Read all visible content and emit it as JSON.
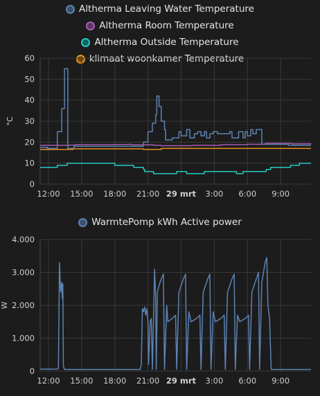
{
  "charts": [
    {
      "type": "line",
      "ylabel": "°C",
      "ylim": [
        0,
        60
      ],
      "yticks": [
        0,
        10,
        20,
        30,
        40,
        50,
        60
      ],
      "ytick_labels": [
        "0",
        "10",
        "20",
        "30",
        "40",
        "50",
        "60"
      ],
      "x_range": [
        11.25,
        35.75
      ],
      "xticks": [
        12,
        15,
        18,
        21,
        24,
        27,
        30,
        33
      ],
      "xtick_labels": [
        "12:00",
        "15:00",
        "18:00",
        "21:00",
        "29 mrt",
        "3:00",
        "6:00",
        "9:00"
      ],
      "legend": [
        {
          "name": "Altherma Leaving Water Temperature",
          "color": "#5d83b3",
          "fill": "#3b4e6b"
        },
        {
          "name": "Altherma Room Temperature",
          "color": "#a35fb0",
          "fill": "#5c3566"
        },
        {
          "name": "Altherma Outside Temperature",
          "color": "#27c9c0",
          "fill": "#13615c"
        },
        {
          "name": "klimaat woonkamer Temperature",
          "color": "#e8901c",
          "fill": "#7a4c10"
        }
      ],
      "series": [
        {
          "name": "Altherma Leaving Water Temperature",
          "color": "#5d83b3",
          "step": true,
          "points": [
            [
              11.25,
              17.5
            ],
            [
              11.9,
              17
            ],
            [
              12.6,
              17
            ],
            [
              12.8,
              25
            ],
            [
              13.1,
              25
            ],
            [
              13.2,
              36
            ],
            [
              13.4,
              36
            ],
            [
              13.45,
              55
            ],
            [
              13.7,
              55
            ],
            [
              13.75,
              17
            ],
            [
              14.2,
              17
            ],
            [
              14.3,
              18
            ],
            [
              19.5,
              18
            ],
            [
              20.3,
              18
            ],
            [
              20.6,
              20
            ],
            [
              21.0,
              25
            ],
            [
              21.3,
              25
            ],
            [
              21.4,
              29
            ],
            [
              21.6,
              29
            ],
            [
              21.7,
              33
            ],
            [
              21.8,
              42
            ],
            [
              22.0,
              37
            ],
            [
              22.2,
              30
            ],
            [
              22.5,
              26
            ],
            [
              22.6,
              21
            ],
            [
              23.0,
              21
            ],
            [
              23.2,
              22
            ],
            [
              23.6,
              22
            ],
            [
              23.8,
              25
            ],
            [
              24.0,
              23
            ],
            [
              24.4,
              23
            ],
            [
              24.5,
              26
            ],
            [
              24.8,
              22
            ],
            [
              25.2,
              24
            ],
            [
              25.5,
              25
            ],
            [
              25.8,
              23
            ],
            [
              26.1,
              25
            ],
            [
              26.3,
              22
            ],
            [
              26.6,
              24
            ],
            [
              26.9,
              25
            ],
            [
              27.1,
              25
            ],
            [
              27.3,
              24
            ],
            [
              28.3,
              24
            ],
            [
              28.4,
              25
            ],
            [
              28.6,
              22
            ],
            [
              29.0,
              22
            ],
            [
              29.2,
              25
            ],
            [
              29.6,
              22
            ],
            [
              29.8,
              25
            ],
            [
              30.0,
              23
            ],
            [
              30.3,
              26
            ],
            [
              30.5,
              24
            ],
            [
              30.7,
              24
            ],
            [
              30.8,
              26
            ],
            [
              31.2,
              26
            ],
            [
              31.3,
              19
            ],
            [
              33.6,
              19
            ],
            [
              33.7,
              18.5
            ],
            [
              35.75,
              18.5
            ]
          ]
        },
        {
          "name": "Altherma Room Temperature",
          "color": "#a35fb0",
          "step": true,
          "points": [
            [
              11.25,
              18.5
            ],
            [
              13.8,
              18.6
            ],
            [
              14.4,
              18.8
            ],
            [
              17.9,
              18.9
            ],
            [
              19.3,
              19.0
            ],
            [
              19.5,
              18.7
            ],
            [
              21.5,
              18.5
            ],
            [
              22.2,
              18.3
            ],
            [
              25.0,
              18.5
            ],
            [
              27.6,
              18.8
            ],
            [
              30.0,
              19.0
            ],
            [
              31.2,
              19.0
            ],
            [
              31.6,
              19.4
            ],
            [
              34.0,
              19.2
            ],
            [
              35.75,
              19.0
            ]
          ]
        },
        {
          "name": "Altherma Outside Temperature",
          "color": "#27c9c0",
          "step": true,
          "points": [
            [
              11.25,
              8
            ],
            [
              12.6,
              8
            ],
            [
              12.8,
              9
            ],
            [
              13.5,
              9
            ],
            [
              13.7,
              10
            ],
            [
              17.8,
              10
            ],
            [
              18.0,
              9
            ],
            [
              19.5,
              9
            ],
            [
              19.7,
              8
            ],
            [
              20.5,
              8
            ],
            [
              20.6,
              7
            ],
            [
              20.7,
              6
            ],
            [
              21.3,
              6
            ],
            [
              21.5,
              5
            ],
            [
              23.5,
              5
            ],
            [
              23.6,
              6
            ],
            [
              24.4,
              6
            ],
            [
              24.5,
              5
            ],
            [
              26.0,
              5
            ],
            [
              26.1,
              6
            ],
            [
              28.8,
              6
            ],
            [
              29.0,
              5
            ],
            [
              29.5,
              5
            ],
            [
              29.6,
              6
            ],
            [
              31.6,
              6
            ],
            [
              31.7,
              7
            ],
            [
              32.0,
              7
            ],
            [
              32.1,
              8
            ],
            [
              33.8,
              8
            ],
            [
              33.9,
              9
            ],
            [
              34.5,
              9
            ],
            [
              34.7,
              10
            ],
            [
              35.75,
              10
            ]
          ]
        },
        {
          "name": "klimaat woonkamer Temperature",
          "color": "#e8901c",
          "step": true,
          "points": [
            [
              11.25,
              16.5
            ],
            [
              14.0,
              16.5
            ],
            [
              14.2,
              16.8
            ],
            [
              20.5,
              16.8
            ],
            [
              20.6,
              16.5
            ],
            [
              22.0,
              16.5
            ],
            [
              22.2,
              17.0
            ],
            [
              35.75,
              17.0
            ]
          ]
        }
      ]
    },
    {
      "type": "line",
      "ylabel": "W",
      "ylim": [
        0,
        4000
      ],
      "yticks": [
        0,
        1000,
        2000,
        3000,
        4000
      ],
      "ytick_labels": [
        "0",
        "1.000",
        "2.000",
        "3.000",
        "4.000"
      ],
      "x_range": [
        11.25,
        35.75
      ],
      "xticks": [
        12,
        15,
        18,
        21,
        24,
        27,
        30,
        33
      ],
      "xtick_labels": [
        "12:00",
        "15:00",
        "18:00",
        "21:00",
        "29 mrt",
        "3:00",
        "6:00",
        "9:00"
      ],
      "legend": [
        {
          "name": "WarmtePomp kWh Active power",
          "color": "#5d83b3",
          "fill": "#3b4e6b"
        }
      ],
      "series": [
        {
          "name": "WarmtePomp kWh Active power",
          "color": "#5d83b3",
          "step": false,
          "points": [
            [
              11.25,
              60
            ],
            [
              12.8,
              60
            ],
            [
              12.9,
              80
            ],
            [
              13.0,
              3300
            ],
            [
              13.1,
              2400
            ],
            [
              13.2,
              2700
            ],
            [
              13.25,
              2200
            ],
            [
              13.3,
              2650
            ],
            [
              13.35,
              150
            ],
            [
              13.45,
              50
            ],
            [
              20.3,
              50
            ],
            [
              20.4,
              200
            ],
            [
              20.5,
              1900
            ],
            [
              20.6,
              1800
            ],
            [
              20.7,
              1950
            ],
            [
              20.8,
              1700
            ],
            [
              20.9,
              1900
            ],
            [
              21.0,
              1500
            ],
            [
              21.05,
              200
            ],
            [
              21.2,
              1500
            ],
            [
              21.3,
              1600
            ],
            [
              21.4,
              50
            ],
            [
              21.6,
              3100
            ],
            [
              21.7,
              2200
            ],
            [
              21.75,
              50
            ],
            [
              21.85,
              2400
            ],
            [
              22.0,
              2600
            ],
            [
              22.2,
              2800
            ],
            [
              22.4,
              2950
            ],
            [
              22.5,
              50
            ],
            [
              22.7,
              2000
            ],
            [
              22.8,
              1500
            ],
            [
              23.2,
              1600
            ],
            [
              23.5,
              1700
            ],
            [
              23.6,
              50
            ],
            [
              23.8,
              2400
            ],
            [
              24.0,
              2600
            ],
            [
              24.2,
              2800
            ],
            [
              24.4,
              2950
            ],
            [
              24.5,
              50
            ],
            [
              24.7,
              1800
            ],
            [
              24.9,
              1500
            ],
            [
              25.4,
              1600
            ],
            [
              25.7,
              1700
            ],
            [
              25.8,
              50
            ],
            [
              26.0,
              2400
            ],
            [
              26.2,
              2600
            ],
            [
              26.4,
              2800
            ],
            [
              26.6,
              2950
            ],
            [
              26.7,
              50
            ],
            [
              26.9,
              1800
            ],
            [
              27.1,
              1500
            ],
            [
              27.6,
              1600
            ],
            [
              27.9,
              1700
            ],
            [
              28.0,
              50
            ],
            [
              28.2,
              2400
            ],
            [
              28.4,
              2600
            ],
            [
              28.6,
              2800
            ],
            [
              28.8,
              2950
            ],
            [
              28.9,
              50
            ],
            [
              29.1,
              1700
            ],
            [
              29.3,
              1500
            ],
            [
              29.8,
              1600
            ],
            [
              30.1,
              1700
            ],
            [
              30.2,
              50
            ],
            [
              30.4,
              2400
            ],
            [
              30.6,
              2600
            ],
            [
              30.8,
              2800
            ],
            [
              31.0,
              3000
            ],
            [
              31.1,
              50
            ],
            [
              31.3,
              2700
            ],
            [
              31.45,
              3000
            ],
            [
              31.6,
              3300
            ],
            [
              31.75,
              3450
            ],
            [
              31.85,
              2000
            ],
            [
              32.0,
              1600
            ],
            [
              32.15,
              50
            ],
            [
              35.75,
              50
            ]
          ]
        }
      ]
    }
  ]
}
